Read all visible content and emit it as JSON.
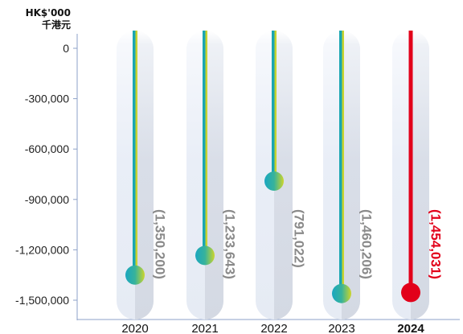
{
  "header": {
    "unit_en": "HK$'000",
    "unit_zh": "千港元"
  },
  "chart_data": {
    "type": "bar",
    "title": "",
    "xlabel": "",
    "ylabel": "HK$'000 千港元",
    "categories": [
      "2020",
      "2021",
      "2022",
      "2023",
      "2024"
    ],
    "highlight_category": "2024",
    "values": [
      -1350200,
      -1233643,
      -791022,
      -1460206,
      -1454031
    ],
    "data_labels": [
      "(1,350,200)",
      "(1,233,643)",
      "(791,022)",
      "(1,460,206)",
      "(1,454,031)"
    ],
    "yticks": [
      0,
      -300000,
      -600000,
      -900000,
      -1200000,
      -1500000
    ],
    "ytick_labels": [
      "0",
      "-300,000",
      "-600,000",
      "-900,000",
      "-1,200,000",
      "-1,500,000"
    ],
    "ylim": [
      -1500000,
      0
    ],
    "grid": false,
    "colors": {
      "tube_light": "#e8edf6",
      "tube_shade": "#d6dbe5",
      "line_teal": "#1aa6b2",
      "line_yellow": "#c8d32e",
      "line_highlight": "#e2001a",
      "label_grey": "#8a8a8a",
      "axis": "#8ea2c8"
    }
  }
}
